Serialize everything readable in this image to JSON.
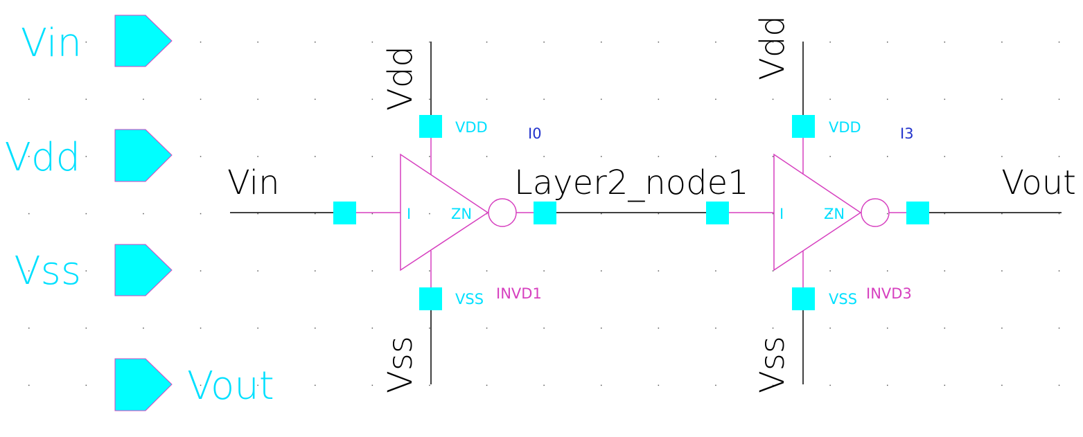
{
  "colors": {
    "background": "#ffffff",
    "wire": "#000000",
    "symbol": "#d63fbf",
    "pin": "#00ffff",
    "pin_text": "#00e0ff",
    "instance_name": "#2233cc",
    "grid_dot": "#555555"
  },
  "pin_list": [
    {
      "label": "Vin",
      "icon": "input-pin-icon"
    },
    {
      "label": "Vdd",
      "icon": "input-pin-icon"
    },
    {
      "label": "Vss",
      "icon": "input-pin-icon"
    },
    {
      "label": "Vout",
      "icon": "output-pin-icon"
    }
  ],
  "nets": {
    "input": "Vin",
    "middle": "Layer2_node1",
    "output": "Vout",
    "supply_1": "Vdd",
    "ground_1": "Vss",
    "supply_2": "Vdd",
    "ground_2": "Vss"
  },
  "instances": [
    {
      "instance_name": "I0",
      "cell_name": "INVD1",
      "pin_in": "I",
      "pin_out": "ZN",
      "pin_vdd": "VDD",
      "pin_vss": "VSS"
    },
    {
      "instance_name": "I3",
      "cell_name": "INVD3",
      "pin_in": "I",
      "pin_out": "ZN",
      "pin_vdd": "VDD",
      "pin_vss": "VSS"
    }
  ]
}
